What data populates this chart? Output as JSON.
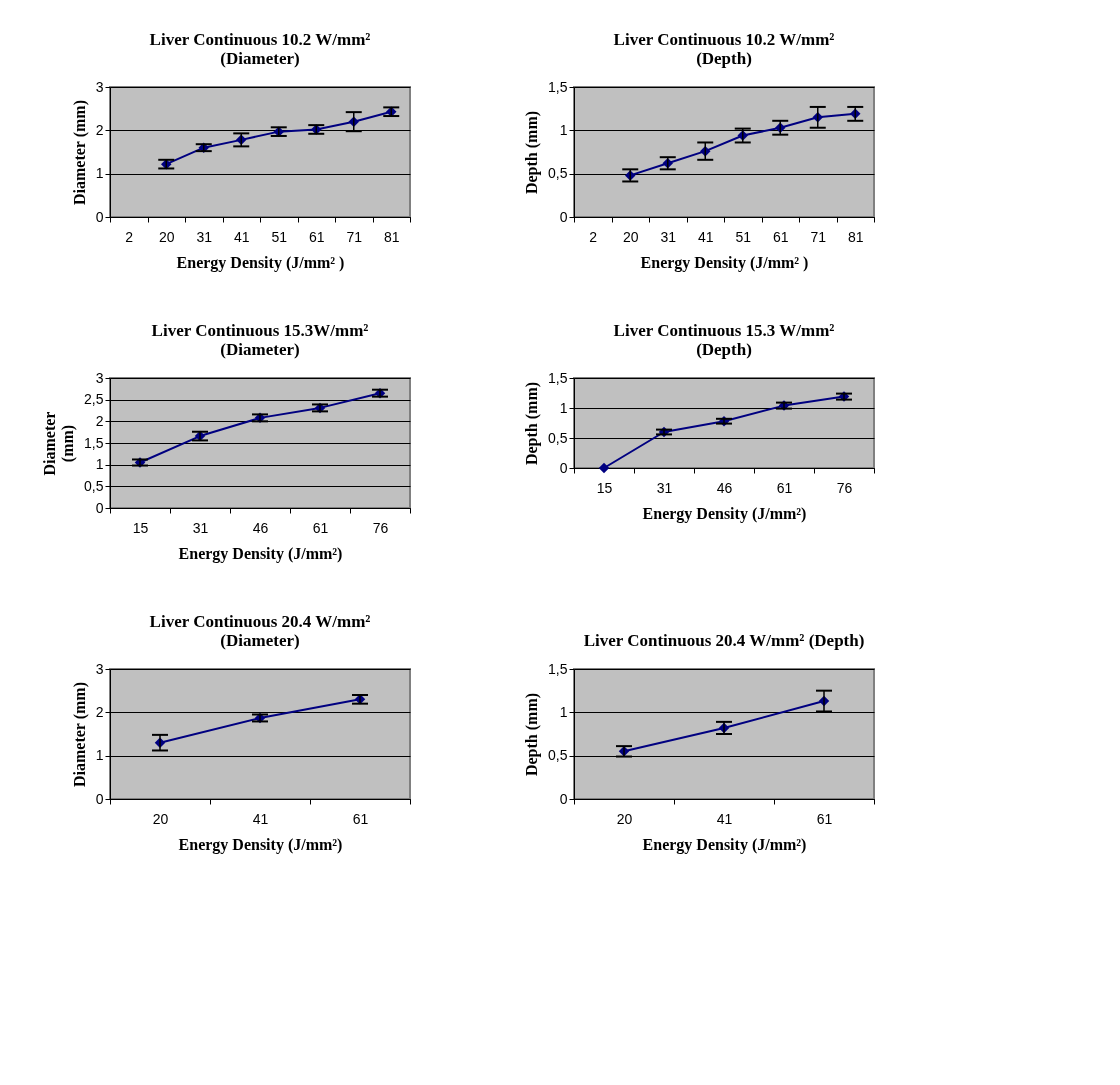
{
  "chart_data": [
    {
      "type": "line",
      "title": "Liver Continuous 10.2 W/mm²\n(Diameter)",
      "xlabel": "Energy Density (J/mm² )",
      "ylabel": "Diameter (mm)",
      "categories": [
        "2",
        "20",
        "31",
        "41",
        "51",
        "61",
        "71",
        "81"
      ],
      "series": [
        {
          "color": "#000080",
          "values": [
            null,
            1.22,
            1.6,
            1.78,
            1.97,
            2.02,
            2.2,
            2.43
          ],
          "errors": [
            null,
            0.1,
            0.08,
            0.15,
            0.1,
            0.1,
            0.22,
            0.1
          ]
        }
      ],
      "ylim": [
        0,
        3
      ],
      "yticks": [
        0,
        1,
        2,
        3
      ],
      "grid": "y",
      "marker": "diamond",
      "line_style": "solid"
    },
    {
      "type": "line",
      "title": "Liver Continuous 10.2 W/mm²\n(Depth)",
      "xlabel": "Energy Density (J/mm² )",
      "ylabel": "Depth (mm)",
      "categories": [
        "2",
        "20",
        "31",
        "41",
        "51",
        "61",
        "71",
        "81"
      ],
      "series": [
        {
          "color": "#000080",
          "values": [
            null,
            0.48,
            0.62,
            0.76,
            0.94,
            1.03,
            1.15,
            1.19
          ],
          "errors": [
            null,
            0.07,
            0.07,
            0.1,
            0.08,
            0.08,
            0.12,
            0.08
          ]
        }
      ],
      "ylim": [
        0,
        1.5
      ],
      "yticks": [
        0,
        {
          "value": 0.5,
          "label": "0,5"
        },
        1,
        {
          "value": 1.5,
          "label": "1,5"
        }
      ],
      "grid": "y",
      "marker": "diamond",
      "line_style": "solid"
    },
    {
      "type": "line",
      "title": "Liver Continuous 15.3W/mm²\n(Diameter)",
      "xlabel": "Energy  Density (J/mm²)",
      "ylabel": "Diameter\n(mm)",
      "categories": [
        "15",
        "31",
        "46",
        "61",
        "76"
      ],
      "series": [
        {
          "color": "#000080",
          "values": [
            1.05,
            1.66,
            2.08,
            2.31,
            2.65
          ],
          "errors": [
            0.07,
            0.1,
            0.08,
            0.08,
            0.08
          ]
        }
      ],
      "ylim": [
        0,
        3
      ],
      "yticks": [
        0,
        {
          "value": 0.5,
          "label": "0,5"
        },
        1,
        {
          "value": 1.5,
          "label": "1,5"
        },
        2,
        {
          "value": 2.5,
          "label": "2,5"
        },
        3
      ],
      "grid": "y",
      "marker": "diamond",
      "line_style": "solid"
    },
    {
      "type": "line",
      "title": "Liver Continuous 15.3 W/mm²\n(Depth)",
      "xlabel": "Energy Density (J/mm²)",
      "ylabel": "Depth (mm)",
      "categories": [
        "15",
        "31",
        "46",
        "61",
        "76"
      ],
      "series": [
        {
          "color": "#000080",
          "values": [
            0,
            0.6,
            0.78,
            1.04,
            1.19
          ],
          "errors": [
            null,
            0.04,
            0.04,
            0.05,
            0.05
          ]
        }
      ],
      "ylim": [
        0,
        1.5
      ],
      "yticks": [
        0,
        {
          "value": 0.5,
          "label": "0,5"
        },
        1,
        {
          "value": 1.5,
          "label": "1,5"
        }
      ],
      "grid": "y",
      "marker": "diamond",
      "line_style": "solid"
    },
    {
      "type": "line",
      "title": "Liver Continuous 20.4 W/mm²\n(Diameter)",
      "xlabel": "Energy Density (J/mm²)",
      "ylabel": "Diameter (mm)",
      "categories": [
        "20",
        "41",
        "61"
      ],
      "series": [
        {
          "color": "#000080",
          "values": [
            1.3,
            1.87,
            2.3
          ],
          "errors": [
            0.18,
            0.08,
            0.1
          ]
        }
      ],
      "ylim": [
        0,
        3
      ],
      "yticks": [
        0,
        1,
        2,
        3
      ],
      "grid": "y",
      "marker": "diamond",
      "line_style": "solid"
    },
    {
      "type": "line",
      "title": "Liver Continuous 20.4 W/mm²  (Depth)",
      "xlabel": "Energy Density (J/mm²)",
      "ylabel": "Depth (mm)",
      "categories": [
        "20",
        "41",
        "61"
      ],
      "series": [
        {
          "color": "#000080",
          "values": [
            0.55,
            0.82,
            1.13
          ],
          "errors": [
            0.06,
            0.07,
            0.12
          ]
        }
      ],
      "ylim": [
        0,
        1.5
      ],
      "yticks": [
        0,
        {
          "value": 0.5,
          "label": "0,5"
        },
        1,
        {
          "value": 1.5,
          "label": "1,5"
        }
      ],
      "grid": "y",
      "marker": "diamond",
      "line_style": "solid"
    }
  ]
}
